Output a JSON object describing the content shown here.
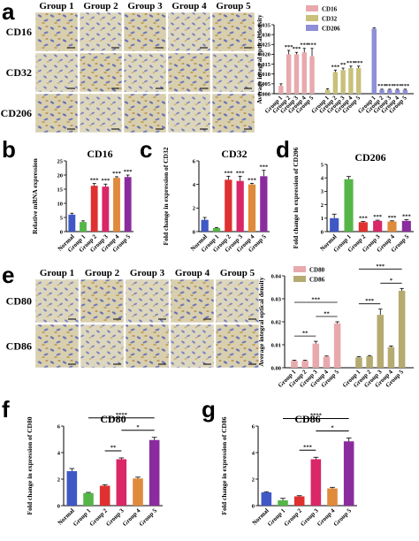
{
  "panel_labels": {
    "a": "a",
    "b": "b",
    "c": "c",
    "d": "d",
    "e": "e",
    "f": "f",
    "g": "g"
  },
  "microscopy_a": {
    "columns": [
      "Group 1",
      "Group 2",
      "Group 3",
      "Group 4",
      "Group 5"
    ],
    "rows": [
      "CD16",
      "CD32",
      "CD206"
    ]
  },
  "microscopy_e": {
    "columns": [
      "Group 1",
      "Group 2",
      "Group 3",
      "Group 4",
      "Group 5"
    ],
    "rows": [
      "CD80",
      "CD86"
    ]
  },
  "chart_data": [
    {
      "id": "a",
      "type": "bar",
      "ylabel": "Average integral optical density",
      "ylim": [
        0,
        0.035
      ],
      "yticks": [
        "0.000",
        "0.005",
        "0.010",
        "0.015",
        "0.020",
        "0.025",
        "0.030",
        "0.035"
      ],
      "categories": [
        "Group 1",
        "Group 2",
        "Group 3",
        "Group 4",
        "Group 5"
      ],
      "series": [
        {
          "name": "CD16",
          "color": "#e8a9ad",
          "values": [
            0.004,
            0.02,
            0.02,
            0.021,
            0.019
          ],
          "errors": [
            0.001,
            0.002,
            0.001,
            0.002,
            0.004
          ],
          "sig": [
            "",
            "***",
            "***",
            "***",
            "***"
          ]
        },
        {
          "name": "CD32",
          "color": "#c9c07a",
          "values": [
            0.002,
            0.011,
            0.012,
            0.013,
            0.013
          ],
          "errors": [
            0.0005,
            0.001,
            0.001,
            0.001,
            0.001
          ],
          "sig": [
            "",
            "***",
            "**",
            "***",
            "***"
          ]
        },
        {
          "name": "CD206",
          "color": "#8e8fd6",
          "values": [
            0.033,
            0.002,
            0.002,
            0.002,
            0.002
          ],
          "errors": [
            0.0005,
            0.0003,
            0.0003,
            0.0003,
            0.0003
          ],
          "sig": [
            "",
            "***",
            "***",
            "***",
            "***"
          ]
        }
      ]
    },
    {
      "id": "b",
      "type": "bar",
      "title": "CD16",
      "ylabel": "Relative mRNA expression",
      "ylim": [
        0,
        25
      ],
      "yticks": [
        "0",
        "5",
        "10",
        "15",
        "20",
        "25"
      ],
      "categories": [
        "Normal",
        "Group 1",
        "Group 2",
        "Group 3",
        "Group 4",
        "Group 5"
      ],
      "values": [
        6.0,
        3.4,
        16.2,
        15.9,
        19.0,
        19.3
      ],
      "errors": [
        0.5,
        0.4,
        0.8,
        0.9,
        0.4,
        0.7
      ],
      "colors": [
        "#3f58c6",
        "#55b648",
        "#e03030",
        "#d92767",
        "#e08a3c",
        "#8b2c9e"
      ],
      "sig": [
        "",
        "",
        "***",
        "***",
        "***",
        "***"
      ]
    },
    {
      "id": "c",
      "type": "bar",
      "title": "CD32",
      "ylabel": "Fold change in expression of CD32",
      "ylim": [
        0,
        6
      ],
      "yticks": [
        "0",
        "2",
        "4",
        "6"
      ],
      "categories": [
        "Normal",
        "Group 1",
        "Group 2",
        "Group 3",
        "Group 4",
        "Group 5"
      ],
      "values": [
        1.0,
        0.3,
        4.4,
        4.3,
        4.0,
        4.7
      ],
      "errors": [
        0.2,
        0.05,
        0.3,
        0.4,
        0.1,
        0.5
      ],
      "colors": [
        "#3f58c6",
        "#55b648",
        "#e03030",
        "#d92767",
        "#e08a3c",
        "#8b2c9e"
      ],
      "sig": [
        "",
        "",
        "***",
        "***",
        "***",
        "***"
      ]
    },
    {
      "id": "d",
      "type": "bar",
      "title": "CD206",
      "ylabel": "Fold change in expression of CD206",
      "ylim": [
        0,
        5
      ],
      "yticks": [
        "0",
        "1",
        "2",
        "3",
        "4",
        "5"
      ],
      "categories": [
        "Normal",
        "Group 1",
        "Group 2",
        "Group 3",
        "Group 4",
        "Group 5"
      ],
      "values": [
        1.0,
        3.9,
        0.7,
        0.8,
        0.75,
        0.8
      ],
      "errors": [
        0.3,
        0.2,
        0.05,
        0.05,
        0.05,
        0.1
      ],
      "colors": [
        "#3f58c6",
        "#55b648",
        "#e03030",
        "#d92767",
        "#e08a3c",
        "#8b2c9e"
      ],
      "sig": [
        "",
        "",
        "***",
        "***",
        "***",
        "***"
      ]
    },
    {
      "id": "e",
      "type": "bar",
      "ylabel": "Average integral optical density",
      "ylim": [
        0,
        0.04
      ],
      "yticks": [
        "0.00",
        "0.01",
        "0.02",
        "0.03",
        "0.04"
      ],
      "categories": [
        "Group 1",
        "Group 2",
        "Group 3",
        "Group 4",
        "Group 5"
      ],
      "series": [
        {
          "name": "CD80",
          "color": "#e8a9ad",
          "values": [
            0.003,
            0.003,
            0.0105,
            0.0048,
            0.0193
          ],
          "errors": [
            0.0003,
            0.0003,
            0.001,
            0.0003,
            0.0007
          ]
        },
        {
          "name": "CD86",
          "color": "#b5aa70",
          "values": [
            0.0045,
            0.005,
            0.023,
            0.009,
            0.0335
          ],
          "errors": [
            0.0003,
            0.0003,
            0.0025,
            0.0005,
            0.001
          ]
        }
      ],
      "brackets": [
        {
          "series": 0,
          "from": 2,
          "to": 0,
          "label": "**"
        },
        {
          "series": 0,
          "from": 2,
          "to": 4,
          "label": "**"
        },
        {
          "series": 0,
          "from": 0,
          "to": 4,
          "label": "***"
        },
        {
          "series": 1,
          "from": 0,
          "to": 2,
          "label": "***"
        },
        {
          "series": 1,
          "from": 2,
          "to": 4,
          "label": "*"
        },
        {
          "series": 1,
          "from": 0,
          "to": 4,
          "label": "***"
        }
      ]
    },
    {
      "id": "f",
      "type": "bar",
      "title": "CD80",
      "ylabel": "Fold change in expression of CD80",
      "ylim": [
        0,
        6
      ],
      "yticks": [
        "0",
        "2",
        "4",
        "6"
      ],
      "categories": [
        "Normal",
        "Group 1",
        "Group 2",
        "Group 3",
        "Group 4",
        "Group 5"
      ],
      "values": [
        2.6,
        0.95,
        1.5,
        3.5,
        2.05,
        4.95
      ],
      "errors": [
        0.2,
        0.05,
        0.08,
        0.1,
        0.1,
        0.2
      ],
      "colors": [
        "#3f58c6",
        "#55b648",
        "#e03030",
        "#d92767",
        "#e08a3c",
        "#8b2c9e"
      ],
      "brackets": [
        {
          "from": 2,
          "to": 3,
          "label": "**"
        },
        {
          "from": 3,
          "to": 5,
          "label": "*"
        },
        {
          "from": 1,
          "to": 5,
          "label": "****"
        }
      ]
    },
    {
      "id": "g",
      "type": "bar",
      "title": "CD86",
      "ylabel": "Fold change in expression of CD86",
      "ylim": [
        0,
        6
      ],
      "yticks": [
        "0",
        "2",
        "4",
        "6"
      ],
      "categories": [
        "Normal",
        "Group 1",
        "Group 2",
        "Group 3",
        "Group 4",
        "Group 5"
      ],
      "values": [
        1.0,
        0.4,
        0.7,
        3.5,
        1.3,
        4.85
      ],
      "errors": [
        0.05,
        0.15,
        0.05,
        0.15,
        0.08,
        0.25
      ],
      "colors": [
        "#3f58c6",
        "#55b648",
        "#e03030",
        "#d92767",
        "#e08a3c",
        "#8b2c9e"
      ],
      "brackets": [
        {
          "from": 2,
          "to": 3,
          "label": "***"
        },
        {
          "from": 3,
          "to": 5,
          "label": "*"
        },
        {
          "from": 1,
          "to": 5,
          "label": "****"
        }
      ]
    }
  ]
}
